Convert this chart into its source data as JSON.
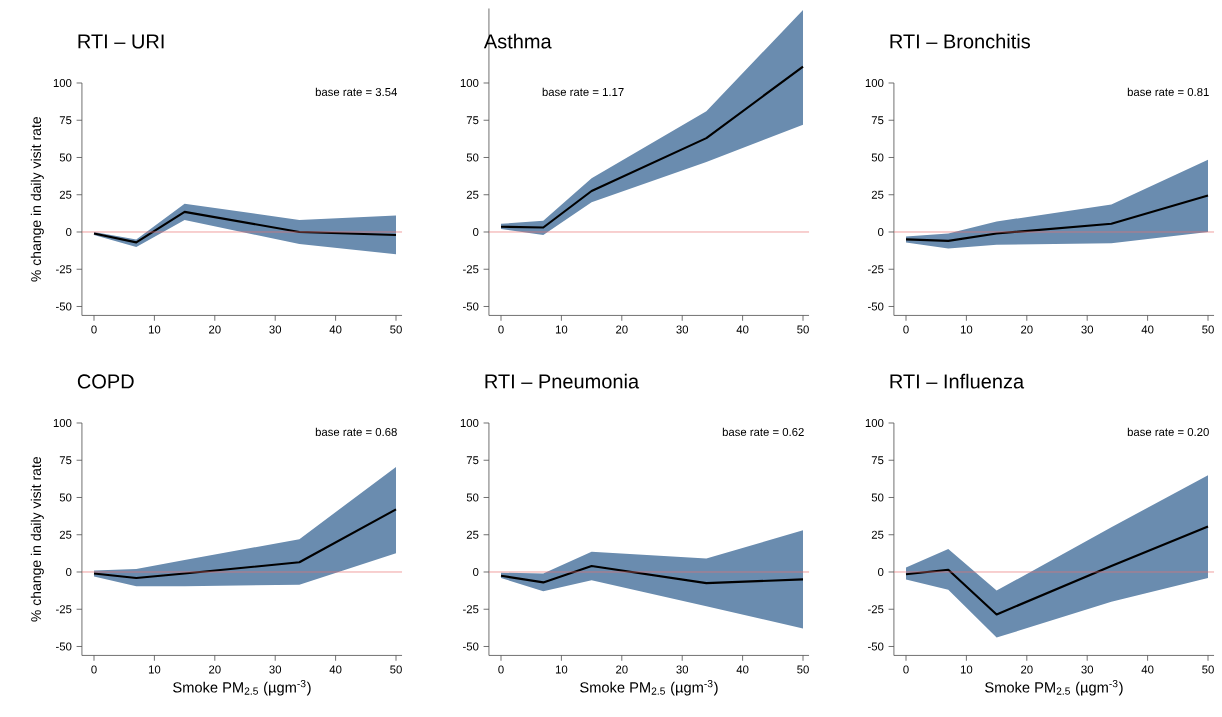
{
  "chart_data": [
    {
      "type": "line",
      "title": "RTI – URI",
      "ylabel": "% change in daily visit rate",
      "annotations": [
        "base rate =  3.54"
      ],
      "x": [
        0,
        7,
        15,
        34,
        50
      ],
      "series": [
        {
          "color": "#000000",
          "values": [
            -1,
            -7,
            13.5,
            0,
            -2
          ],
          "lower": [
            -2,
            -10,
            8,
            -8,
            -15
          ],
          "upper": [
            0,
            -5,
            19,
            8,
            11
          ]
        }
      ],
      "xlim": [
        -2,
        51
      ],
      "ylim": [
        -56,
        100
      ],
      "xticks": [
        0,
        10,
        20,
        30,
        40,
        50
      ],
      "yticks": [
        -50,
        -25,
        0,
        25,
        50,
        75,
        100
      ],
      "ref_lines": [
        {
          "axis": "y",
          "value": 0,
          "color": "#e8706f"
        }
      ]
    },
    {
      "type": "line",
      "title": "Asthma",
      "annotations": [
        "base rate =  1.17"
      ],
      "x": [
        0,
        7,
        15,
        34,
        50
      ],
      "series": [
        {
          "color": "#000000",
          "values": [
            3.5,
            3,
            27.5,
            63,
            111
          ],
          "lower": [
            2,
            -2,
            20,
            47,
            72
          ],
          "upper": [
            5.5,
            7.5,
            36,
            81,
            149
          ]
        }
      ],
      "xlim": [
        -2,
        51
      ],
      "ylim": [
        -56,
        150
      ],
      "xticks": [
        0,
        10,
        20,
        30,
        40,
        50
      ],
      "yticks": [
        -50,
        -25,
        0,
        25,
        50,
        75,
        100
      ],
      "ref_lines": [
        {
          "axis": "y",
          "value": 0,
          "color": "#e8706f"
        }
      ]
    },
    {
      "type": "line",
      "title": "RTI – Bronchitis",
      "annotations": [
        "base rate =  0.81"
      ],
      "x": [
        0,
        7,
        15,
        34,
        50
      ],
      "series": [
        {
          "color": "#000000",
          "values": [
            -5,
            -6,
            -1,
            5.5,
            24.5
          ],
          "lower": [
            -7,
            -11,
            -8.5,
            -7.5,
            0
          ],
          "upper": [
            -3,
            -1,
            7,
            18.5,
            48.5
          ]
        }
      ],
      "xlim": [
        -2,
        51
      ],
      "ylim": [
        -56,
        100
      ],
      "xticks": [
        0,
        10,
        20,
        30,
        40,
        50
      ],
      "yticks": [
        -50,
        -25,
        0,
        25,
        50,
        75,
        100
      ],
      "ref_lines": [
        {
          "axis": "y",
          "value": 0,
          "color": "#e8706f"
        }
      ]
    },
    {
      "type": "line",
      "title": "COPD",
      "xlabel": "Smoke PM$_{2.5}$ (µgm$^{-3}$)",
      "ylabel": "% change in daily visit rate",
      "annotations": [
        "base rate =  0.68"
      ],
      "x": [
        0,
        7,
        15,
        34,
        50
      ],
      "series": [
        {
          "color": "#000000",
          "values": [
            -1,
            -4,
            -1,
            6.5,
            42
          ],
          "lower": [
            -3,
            -9.5,
            -9.5,
            -8.5,
            12.5
          ],
          "upper": [
            1,
            2,
            8,
            22,
            70.5
          ]
        }
      ],
      "xlim": [
        -2,
        51
      ],
      "ylim": [
        -56,
        100
      ],
      "xticks": [
        0,
        10,
        20,
        30,
        40,
        50
      ],
      "yticks": [
        -50,
        -25,
        0,
        25,
        50,
        75,
        100
      ],
      "ref_lines": [
        {
          "axis": "y",
          "value": 0,
          "color": "#e8706f"
        }
      ]
    },
    {
      "type": "line",
      "title": "RTI – Pneumonia",
      "xlabel": "Smoke PM$_{2.5}$ (µgm$^{-3}$)",
      "annotations": [
        "base rate =  0.62"
      ],
      "x": [
        0,
        7,
        15,
        34,
        50
      ],
      "series": [
        {
          "color": "#000000",
          "values": [
            -2.5,
            -7,
            4,
            -7.5,
            -5
          ],
          "lower": [
            -4,
            -13,
            -5.5,
            -23,
            -38
          ],
          "upper": [
            -0.5,
            -1,
            13.5,
            9,
            28
          ]
        }
      ],
      "xlim": [
        -2,
        51
      ],
      "ylim": [
        -56,
        100
      ],
      "xticks": [
        0,
        10,
        20,
        30,
        40,
        50
      ],
      "yticks": [
        -50,
        -25,
        0,
        25,
        50,
        75,
        100
      ],
      "ref_lines": [
        {
          "axis": "y",
          "value": 0,
          "color": "#e8706f"
        }
      ]
    },
    {
      "type": "line",
      "title": "RTI – Influenza",
      "xlabel": "Smoke PM$_{2.5}$ (µgm$^{-3}$)",
      "annotations": [
        "base rate =  0.20"
      ],
      "x": [
        0,
        7,
        15,
        34,
        50
      ],
      "series": [
        {
          "color": "#000000",
          "values": [
            -1.5,
            1.5,
            -28.5,
            4,
            30.5
          ],
          "lower": [
            -5,
            -12,
            -44,
            -20,
            -4
          ],
          "upper": [
            3,
            15.5,
            -12.5,
            30,
            65
          ]
        }
      ],
      "xlim": [
        -2,
        51
      ],
      "ylim": [
        -56,
        100
      ],
      "xticks": [
        0,
        10,
        20,
        30,
        40,
        50
      ],
      "yticks": [
        -50,
        -25,
        0,
        25,
        50,
        75,
        100
      ],
      "ref_lines": [
        {
          "axis": "y",
          "value": 0,
          "color": "#e8706f"
        }
      ]
    }
  ]
}
